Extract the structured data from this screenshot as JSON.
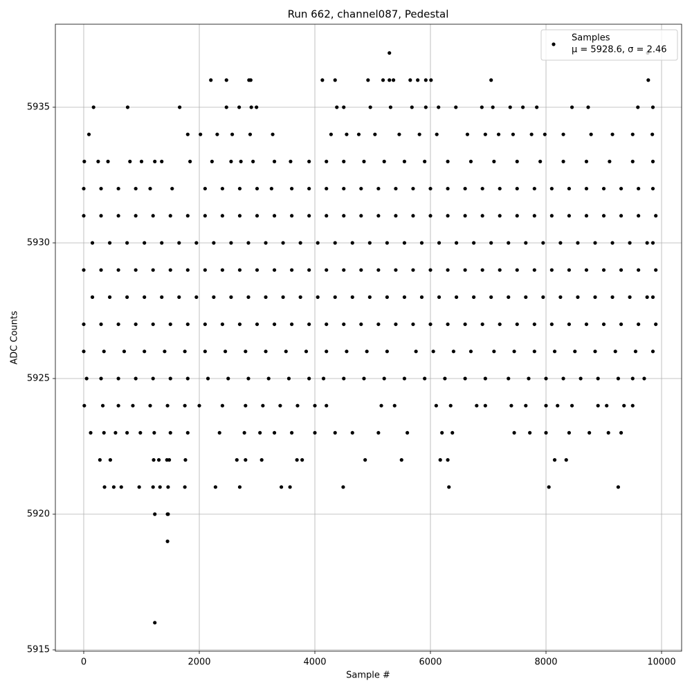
{
  "chart_data": {
    "type": "scatter",
    "title": "Run 662, channel087, Pedestal",
    "x_label": "Sample #",
    "y_label": "ADC Counts",
    "xlim": [
      -491,
      10347
    ],
    "ylim": [
      5914.95,
      5938.06
    ],
    "xticks": [
      0,
      2000,
      4000,
      6000,
      8000,
      10000
    ],
    "yticks": [
      5915,
      5920,
      5925,
      5930,
      5935
    ],
    "grid": true,
    "legend": "upper right",
    "legend_text": "μ = 5928.6, σ = 2.46",
    "series": [
      {
        "name": "Samples",
        "color": "#000000",
        "x": [
          2200,
          2470,
          2860,
          2890,
          4130,
          4350,
          4920,
          5180,
          5290,
          5360,
          5650,
          5780,
          5920,
          6010,
          7050,
          9770,
          170,
          760,
          1660,
          2470,
          2690,
          2900,
          2990,
          4380,
          4500,
          4960,
          5310,
          5680,
          5920,
          6140,
          6440,
          6890,
          7080,
          7380,
          7600,
          7840,
          8450,
          8730,
          9590,
          9850,
          90,
          1800,
          2020,
          2310,
          2570,
          2880,
          3270,
          4280,
          4550,
          4760,
          5040,
          5460,
          5810,
          6110,
          6640,
          6950,
          7180,
          7430,
          7750,
          7980,
          8300,
          8780,
          9150,
          9500,
          9840,
          10,
          250,
          420,
          800,
          1000,
          1230,
          1350,
          1840,
          2220,
          2550,
          2720,
          2930,
          3300,
          3580,
          3900,
          4200,
          4500,
          4850,
          5200,
          5550,
          5900,
          6300,
          6700,
          7100,
          7500,
          7900,
          8300,
          8700,
          9100,
          9500,
          9850,
          0,
          300,
          600,
          900,
          1150,
          1530,
          2100,
          2400,
          2700,
          3000,
          3250,
          3600,
          3900,
          4200,
          4500,
          4800,
          5100,
          5400,
          5700,
          6000,
          6300,
          6600,
          6900,
          7200,
          7500,
          7800,
          8100,
          8400,
          8700,
          9000,
          9300,
          9600,
          9850,
          0,
          300,
          600,
          900,
          1200,
          1500,
          1800,
          2100,
          2400,
          2700,
          3000,
          3300,
          3600,
          3900,
          4200,
          4500,
          4800,
          5100,
          5400,
          5700,
          6000,
          6300,
          6600,
          6900,
          7200,
          7500,
          7800,
          8100,
          8400,
          8700,
          9000,
          9300,
          9600,
          9900,
          150,
          450,
          750,
          1050,
          1350,
          1650,
          1950,
          2250,
          2550,
          2850,
          3150,
          3450,
          3750,
          4050,
          4350,
          4650,
          4950,
          5250,
          5550,
          5850,
          6150,
          6450,
          6750,
          7050,
          7350,
          7650,
          7950,
          8250,
          8550,
          8850,
          9150,
          9450,
          9750,
          9850,
          0,
          300,
          600,
          900,
          1200,
          1500,
          1800,
          2100,
          2400,
          2700,
          3000,
          3300,
          3600,
          3900,
          4200,
          4500,
          4800,
          5100,
          5400,
          5700,
          6000,
          6300,
          6600,
          6900,
          7200,
          7500,
          7800,
          8100,
          8400,
          8700,
          9000,
          9300,
          9600,
          9900,
          150,
          450,
          750,
          1050,
          1350,
          1650,
          1950,
          2250,
          2550,
          2850,
          3150,
          3450,
          3750,
          4050,
          4350,
          4650,
          4950,
          5250,
          5550,
          5850,
          6150,
          6450,
          6750,
          7050,
          7350,
          7650,
          7950,
          8250,
          8550,
          8850,
          9150,
          9450,
          9750,
          9850,
          0,
          300,
          600,
          900,
          1200,
          1500,
          1800,
          2100,
          2400,
          2700,
          3000,
          3300,
          3600,
          3900,
          4200,
          4500,
          4800,
          5100,
          5400,
          5700,
          6000,
          6300,
          6600,
          6900,
          7200,
          7500,
          7800,
          8100,
          8400,
          8700,
          9000,
          9300,
          9600,
          9900,
          0,
          350,
          700,
          1050,
          1400,
          1750,
          2100,
          2450,
          2800,
          3150,
          3500,
          3850,
          4200,
          4550,
          4900,
          5250,
          5750,
          6050,
          6400,
          6700,
          7100,
          7450,
          7800,
          8150,
          8500,
          8850,
          9200,
          9550,
          9850,
          50,
          300,
          600,
          900,
          1200,
          1500,
          1800,
          2150,
          2500,
          2850,
          3200,
          3550,
          3900,
          4150,
          4500,
          4850,
          5200,
          5550,
          5900,
          6250,
          6600,
          6950,
          7350,
          7700,
          8000,
          8300,
          8600,
          8900,
          9250,
          9500,
          9700,
          10,
          330,
          600,
          850,
          1150,
          1450,
          1750,
          2000,
          2400,
          2800,
          3100,
          3400,
          3700,
          4000,
          4200,
          5150,
          5380,
          6100,
          6350,
          6800,
          6950,
          7400,
          7650,
          8000,
          8200,
          8450,
          8900,
          9050,
          9350,
          9500,
          120,
          350,
          550,
          750,
          980,
          1220,
          1500,
          1800,
          2350,
          2780,
          3050,
          3300,
          3600,
          4000,
          4350,
          4650,
          5100,
          5600,
          6200,
          6380,
          7450,
          7720,
          8000,
          8400,
          8750,
          9080,
          9300,
          280,
          460,
          1210,
          1300,
          1440,
          1480,
          1760,
          2650,
          2800,
          3080,
          3690,
          3780,
          4870,
          5500,
          6170,
          6300,
          8150,
          8350,
          360,
          520,
          650,
          960,
          1200,
          1320,
          1460,
          1750,
          2280,
          2700,
          3420,
          3570,
          4490,
          6320,
          8050,
          9250,
          1230,
          1450,
          1460,
          1450,
          1230,
          5290,
          9760
        ],
        "values": [
          5936,
          5936,
          5936,
          5936,
          5936,
          5936,
          5936,
          5936,
          5936,
          5936,
          5936,
          5936,
          5936,
          5936,
          5936,
          5936,
          5935,
          5935,
          5935,
          5935,
          5935,
          5935,
          5935,
          5935,
          5935,
          5935,
          5935,
          5935,
          5935,
          5935,
          5935,
          5935,
          5935,
          5935,
          5935,
          5935,
          5935,
          5935,
          5935,
          5935,
          5934,
          5934,
          5934,
          5934,
          5934,
          5934,
          5934,
          5934,
          5934,
          5934,
          5934,
          5934,
          5934,
          5934,
          5934,
          5934,
          5934,
          5934,
          5934,
          5934,
          5934,
          5934,
          5934,
          5934,
          5934,
          5933,
          5933,
          5933,
          5933,
          5933,
          5933,
          5933,
          5933,
          5933,
          5933,
          5933,
          5933,
          5933,
          5933,
          5933,
          5933,
          5933,
          5933,
          5933,
          5933,
          5933,
          5933,
          5933,
          5933,
          5933,
          5933,
          5933,
          5933,
          5933,
          5933,
          5933,
          5932,
          5932,
          5932,
          5932,
          5932,
          5932,
          5932,
          5932,
          5932,
          5932,
          5932,
          5932,
          5932,
          5932,
          5932,
          5932,
          5932,
          5932,
          5932,
          5932,
          5932,
          5932,
          5932,
          5932,
          5932,
          5932,
          5932,
          5932,
          5932,
          5932,
          5932,
          5932,
          5932,
          5931,
          5931,
          5931,
          5931,
          5931,
          5931,
          5931,
          5931,
          5931,
          5931,
          5931,
          5931,
          5931,
          5931,
          5931,
          5931,
          5931,
          5931,
          5931,
          5931,
          5931,
          5931,
          5931,
          5931,
          5931,
          5931,
          5931,
          5931,
          5931,
          5931,
          5931,
          5931,
          5931,
          5931,
          5930,
          5930,
          5930,
          5930,
          5930,
          5930,
          5930,
          5930,
          5930,
          5930,
          5930,
          5930,
          5930,
          5930,
          5930,
          5930,
          5930,
          5930,
          5930,
          5930,
          5930,
          5930,
          5930,
          5930,
          5930,
          5930,
          5930,
          5930,
          5930,
          5930,
          5930,
          5930,
          5930,
          5930,
          5929,
          5929,
          5929,
          5929,
          5929,
          5929,
          5929,
          5929,
          5929,
          5929,
          5929,
          5929,
          5929,
          5929,
          5929,
          5929,
          5929,
          5929,
          5929,
          5929,
          5929,
          5929,
          5929,
          5929,
          5929,
          5929,
          5929,
          5929,
          5929,
          5929,
          5929,
          5929,
          5929,
          5929,
          5928,
          5928,
          5928,
          5928,
          5928,
          5928,
          5928,
          5928,
          5928,
          5928,
          5928,
          5928,
          5928,
          5928,
          5928,
          5928,
          5928,
          5928,
          5928,
          5928,
          5928,
          5928,
          5928,
          5928,
          5928,
          5928,
          5928,
          5928,
          5928,
          5928,
          5928,
          5928,
          5928,
          5928,
          5927,
          5927,
          5927,
          5927,
          5927,
          5927,
          5927,
          5927,
          5927,
          5927,
          5927,
          5927,
          5927,
          5927,
          5927,
          5927,
          5927,
          5927,
          5927,
          5927,
          5927,
          5927,
          5927,
          5927,
          5927,
          5927,
          5927,
          5927,
          5927,
          5927,
          5927,
          5927,
          5927,
          5927,
          5926,
          5926,
          5926,
          5926,
          5926,
          5926,
          5926,
          5926,
          5926,
          5926,
          5926,
          5926,
          5926,
          5926,
          5926,
          5926,
          5926,
          5926,
          5926,
          5926,
          5926,
          5926,
          5926,
          5926,
          5926,
          5926,
          5926,
          5926,
          5926,
          5925,
          5925,
          5925,
          5925,
          5925,
          5925,
          5925,
          5925,
          5925,
          5925,
          5925,
          5925,
          5925,
          5925,
          5925,
          5925,
          5925,
          5925,
          5925,
          5925,
          5925,
          5925,
          5925,
          5925,
          5925,
          5925,
          5925,
          5925,
          5925,
          5925,
          5925,
          5924,
          5924,
          5924,
          5924,
          5924,
          5924,
          5924,
          5924,
          5924,
          5924,
          5924,
          5924,
          5924,
          5924,
          5924,
          5924,
          5924,
          5924,
          5924,
          5924,
          5924,
          5924,
          5924,
          5924,
          5924,
          5924,
          5924,
          5924,
          5924,
          5924,
          5923,
          5923,
          5923,
          5923,
          5923,
          5923,
          5923,
          5923,
          5923,
          5923,
          5923,
          5923,
          5923,
          5923,
          5923,
          5923,
          5923,
          5923,
          5923,
          5923,
          5923,
          5923,
          5923,
          5923,
          5923,
          5923,
          5923,
          5922,
          5922,
          5922,
          5922,
          5922,
          5922,
          5922,
          5922,
          5922,
          5922,
          5922,
          5922,
          5922,
          5922,
          5922,
          5922,
          5922,
          5922,
          5921,
          5921,
          5921,
          5921,
          5921,
          5921,
          5921,
          5921,
          5921,
          5921,
          5921,
          5921,
          5921,
          5921,
          5921,
          5921,
          5920,
          5920,
          5920,
          5919,
          5916,
          5937,
          5937
        ]
      }
    ]
  }
}
